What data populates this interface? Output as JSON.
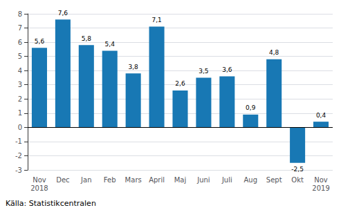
{
  "chart_data": {
    "type": "bar",
    "categories": [
      "Nov\n2018",
      "Dec",
      "Jan",
      "Feb",
      "Mars",
      "April",
      "Maj",
      "Juni",
      "Juli",
      "Aug",
      "Sept",
      "Okt",
      "Nov\n2019"
    ],
    "values": [
      5.6,
      7.6,
      5.8,
      5.4,
      3.8,
      7.1,
      2.6,
      3.5,
      3.6,
      0.9,
      4.8,
      -2.5,
      0.4
    ],
    "value_labels": [
      "5,6",
      "7,6",
      "5,8",
      "5,4",
      "3,8",
      "7,1",
      "2,6",
      "3,5",
      "3,6",
      "0,9",
      "4,8",
      "-2,5",
      "0,4"
    ],
    "data_labels": true,
    "color": "#1878b4",
    "ylim": [
      -3,
      8
    ],
    "yticks": [
      -3,
      -2,
      -1,
      0,
      1,
      2,
      3,
      4,
      5,
      6,
      7,
      8
    ],
    "grid": true,
    "annotations": [
      "Källa: Statistikcentralen"
    ]
  }
}
